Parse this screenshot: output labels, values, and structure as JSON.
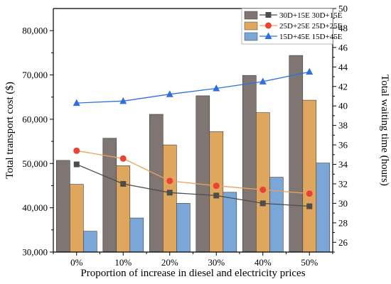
{
  "chart_data": {
    "type": "bar",
    "xlabel": "Proportion of increase in diesel and electricity prices",
    "ylabel": "Total transport cost ($)",
    "y2label": "Total waiting time (hours)",
    "categories": [
      "0%",
      "10%",
      "20%",
      "30%",
      "40%",
      "50%"
    ],
    "ylim": [
      30000,
      85000
    ],
    "y2lim": [
      25,
      50
    ],
    "yticks": [
      30000,
      40000,
      50000,
      60000,
      70000,
      80000
    ],
    "ytick_labels": [
      "30,000",
      "40,000",
      "50,000",
      "60,000",
      "70,000",
      "80,000"
    ],
    "y2ticks": [
      26,
      28,
      30,
      32,
      34,
      36,
      38,
      40,
      42,
      44,
      46,
      48,
      50
    ],
    "legend_position": "top-right",
    "bar_series": [
      {
        "name": "30D+15E",
        "color": "#7f7573",
        "values": [
          50700,
          55700,
          61100,
          65300,
          69900,
          74400
        ]
      },
      {
        "name": "25D+25E",
        "color": "#dfa75e",
        "values": [
          45300,
          49500,
          54200,
          57200,
          61500,
          64300
        ]
      },
      {
        "name": "15D+45E",
        "color": "#7aa6d8",
        "values": [
          34700,
          37700,
          41000,
          43500,
          46900,
          50100
        ]
      }
    ],
    "line_series": [
      {
        "name": "30D+15E",
        "color": "#4d4d4d",
        "marker": "square",
        "values": [
          34.0,
          32.0,
          31.1,
          30.8,
          30.0,
          29.7
        ]
      },
      {
        "name": "25D+25E",
        "color": "#ea4335",
        "line_color": "#e8a25a",
        "marker": "circle",
        "values": [
          35.4,
          34.6,
          32.3,
          31.8,
          31.4,
          31.0
        ]
      },
      {
        "name": "15D+45E",
        "color": "#2e6fe0",
        "marker": "triangle",
        "values": [
          40.3,
          40.5,
          41.2,
          41.8,
          42.5,
          43.5
        ]
      }
    ]
  }
}
